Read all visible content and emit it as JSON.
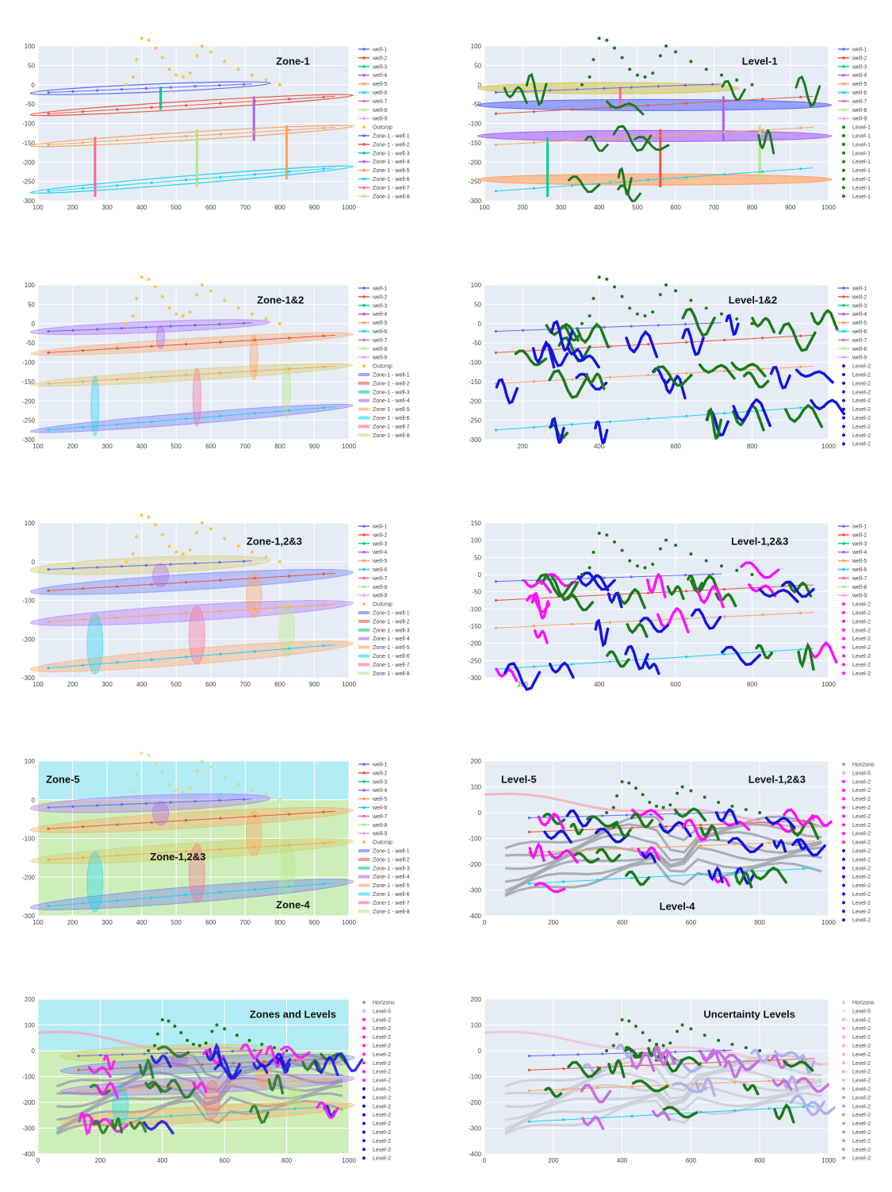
{
  "colors": {
    "plot_bg": "#e5ecf6",
    "grid": "#ffffff",
    "outcrop": "#fcc444",
    "level_green": "#1a7a1a",
    "level_blue": "#1414e0",
    "level_magenta": "#ff10ff",
    "level_pink": "#f4a9b8",
    "horizon_gray": "#9a9ea6",
    "zone5_fill": "#b2ecf4",
    "zone4_fill": "#cdeeb8",
    "well_colors": [
      "#636efa",
      "#ef553b",
      "#00cc96",
      "#ab63fa",
      "#ffa15a",
      "#19d3f3",
      "#ff6692",
      "#b6e880",
      "#ff97ff"
    ],
    "zone_colors": [
      "#636efa",
      "#ef553b",
      "#00cc96",
      "#ab63fa",
      "#ffa15a",
      "#19d3f3",
      "#ff6692",
      "#b6e880"
    ],
    "level_layer_colors": [
      "#d8c85a",
      "#636efa",
      "#ab63fa",
      "#ffa15a"
    ]
  },
  "legends": {
    "wells": [
      "well-1",
      "well-2",
      "well-3",
      "well-4",
      "well-5",
      "well-6",
      "well-7",
      "well-8",
      "well-9"
    ],
    "outcrop": "Outcrop",
    "zones": [
      "Zone-1 - well-1",
      "Zone-1 - well-2",
      "Zone-1 - well-3",
      "Zone-1 - well-4",
      "Zone-1 - well-5",
      "Zone-1 - well-6",
      "Zone-1 - well-7",
      "Zone-1 - well-8"
    ],
    "level1": [
      "Level-1",
      "Level-1",
      "Level-1",
      "Level-1",
      "Level-1",
      "Level-1",
      "Level-1",
      "Level-1",
      "Level-1"
    ],
    "level2_10": [
      "Level-2",
      "Level-2",
      "Level-2",
      "Level-2",
      "Level-2",
      "Level-2",
      "Level-2",
      "Level-2",
      "Level-2",
      "Level-2"
    ],
    "level2_9": [
      "Level-2",
      "Level-2",
      "Level-2",
      "Level-2",
      "Level-2",
      "Level-2",
      "Level-2",
      "Level-2",
      "Level-2"
    ],
    "horizons": "Horizons",
    "level5": "Level-5",
    "level2_many": [
      "Level-2",
      "Level-2",
      "Level-2",
      "Level-2",
      "Level-2",
      "Level-2",
      "Level-2",
      "Level-2",
      "Level-2",
      "Level-2",
      "Level-2",
      "Level-2",
      "Level-2",
      "Level-2",
      "Level-2",
      "Level-2",
      "Level-2"
    ]
  },
  "chart_data": [
    {
      "type": "scatter",
      "title": "Zone-1",
      "xlim": [
        100,
        1000
      ],
      "ylim": [
        -300,
        100
      ],
      "xticks": [
        100,
        200,
        300,
        400,
        500,
        600,
        700,
        800,
        900,
        1000
      ],
      "yticks": [
        100,
        50,
        0,
        -50,
        -100,
        -150,
        -200,
        -250,
        -300
      ],
      "annotations": [
        {
          "text": "Zone-1"
        }
      ]
    },
    {
      "type": "scatter",
      "title": "Level-1",
      "xlim": [
        100,
        1000
      ],
      "ylim": [
        -300,
        100
      ],
      "xticks": [
        100,
        200,
        300,
        400,
        500,
        600,
        700,
        800,
        900,
        1000
      ],
      "yticks": [
        100,
        50,
        0,
        -50,
        -100,
        -150,
        -200,
        -250,
        -300
      ],
      "annotations": [
        {
          "text": "Level-1"
        }
      ]
    },
    {
      "type": "scatter",
      "title": "Zone-1&2",
      "xlim": [
        100,
        1000
      ],
      "ylim": [
        -300,
        100
      ],
      "xticks": [
        100,
        200,
        300,
        400,
        500,
        600,
        700,
        800,
        900,
        1000
      ],
      "yticks": [
        100,
        50,
        0,
        -50,
        -100,
        -150,
        -200,
        -250,
        -300
      ],
      "annotations": [
        {
          "text": "Zone-1&2"
        }
      ]
    },
    {
      "type": "scatter",
      "title": "Level-1&2",
      "xlim": [
        100,
        1000
      ],
      "ylim": [
        -300,
        100
      ],
      "xticks": [
        200,
        400,
        600,
        800,
        1000
      ],
      "yticks": [
        100,
        50,
        0,
        -50,
        -100,
        -150,
        -200,
        -250,
        -300
      ],
      "annotations": [
        {
          "text": "Level-1&2"
        }
      ]
    },
    {
      "type": "scatter",
      "title": "Zone-1,2&3",
      "xlim": [
        100,
        1000
      ],
      "ylim": [
        -300,
        100
      ],
      "xticks": [
        100,
        200,
        300,
        400,
        500,
        600,
        700,
        800,
        900,
        1000
      ],
      "yticks": [
        100,
        0,
        -100,
        -200,
        -300
      ],
      "annotations": [
        {
          "text": "Zone-1,2&3"
        }
      ]
    },
    {
      "type": "scatter",
      "title": "Level-1,2&3",
      "xlim": [
        100,
        1000
      ],
      "ylim": [
        -300,
        150
      ],
      "xticks": [
        200,
        400,
        600,
        800,
        1000
      ],
      "yticks": [
        150,
        100,
        50,
        0,
        -50,
        -100,
        -150,
        -200,
        -250,
        -300
      ],
      "annotations": [
        {
          "text": "Level-1,2&3"
        }
      ]
    },
    {
      "type": "scatter",
      "xlim": [
        100,
        1000
      ],
      "ylim": [
        -300,
        100
      ],
      "xticks": [
        100,
        200,
        300,
        400,
        500,
        600,
        700,
        800,
        900,
        1000
      ],
      "yticks": [
        100,
        0,
        -100,
        -200,
        -300
      ],
      "annotations": [
        {
          "text": "Zone-5"
        },
        {
          "text": "Zone-1,2&3"
        },
        {
          "text": "Zone-4"
        }
      ]
    },
    {
      "type": "scatter",
      "xlim": [
        0,
        1000
      ],
      "ylim": [
        -400,
        200
      ],
      "xticks": [
        0,
        200,
        400,
        600,
        800,
        1000
      ],
      "yticks": [
        200,
        100,
        0,
        -100,
        -200,
        -300,
        -400
      ],
      "annotations": [
        {
          "text": "Level-5"
        },
        {
          "text": "Level-1,2&3"
        },
        {
          "text": "Level-4"
        }
      ]
    },
    {
      "type": "scatter",
      "title": "Zones and Levels",
      "xlim": [
        0,
        1000
      ],
      "ylim": [
        -400,
        200
      ],
      "xticks": [
        0,
        200,
        400,
        600,
        800,
        1000
      ],
      "yticks": [
        200,
        100,
        0,
        -100,
        -200,
        -300,
        -400
      ],
      "annotations": [
        {
          "text": "Zones and Levels"
        }
      ]
    },
    {
      "type": "scatter",
      "title": "Uncertainty Levels",
      "xlim": [
        0,
        1000
      ],
      "ylim": [
        -400,
        200
      ],
      "xticks": [
        0,
        200,
        400,
        600,
        800,
        1000
      ],
      "yticks": [
        200,
        100,
        0,
        -100,
        -200,
        -300,
        -400
      ],
      "annotations": [
        {
          "text": "Uncertainty Levels"
        }
      ]
    }
  ]
}
